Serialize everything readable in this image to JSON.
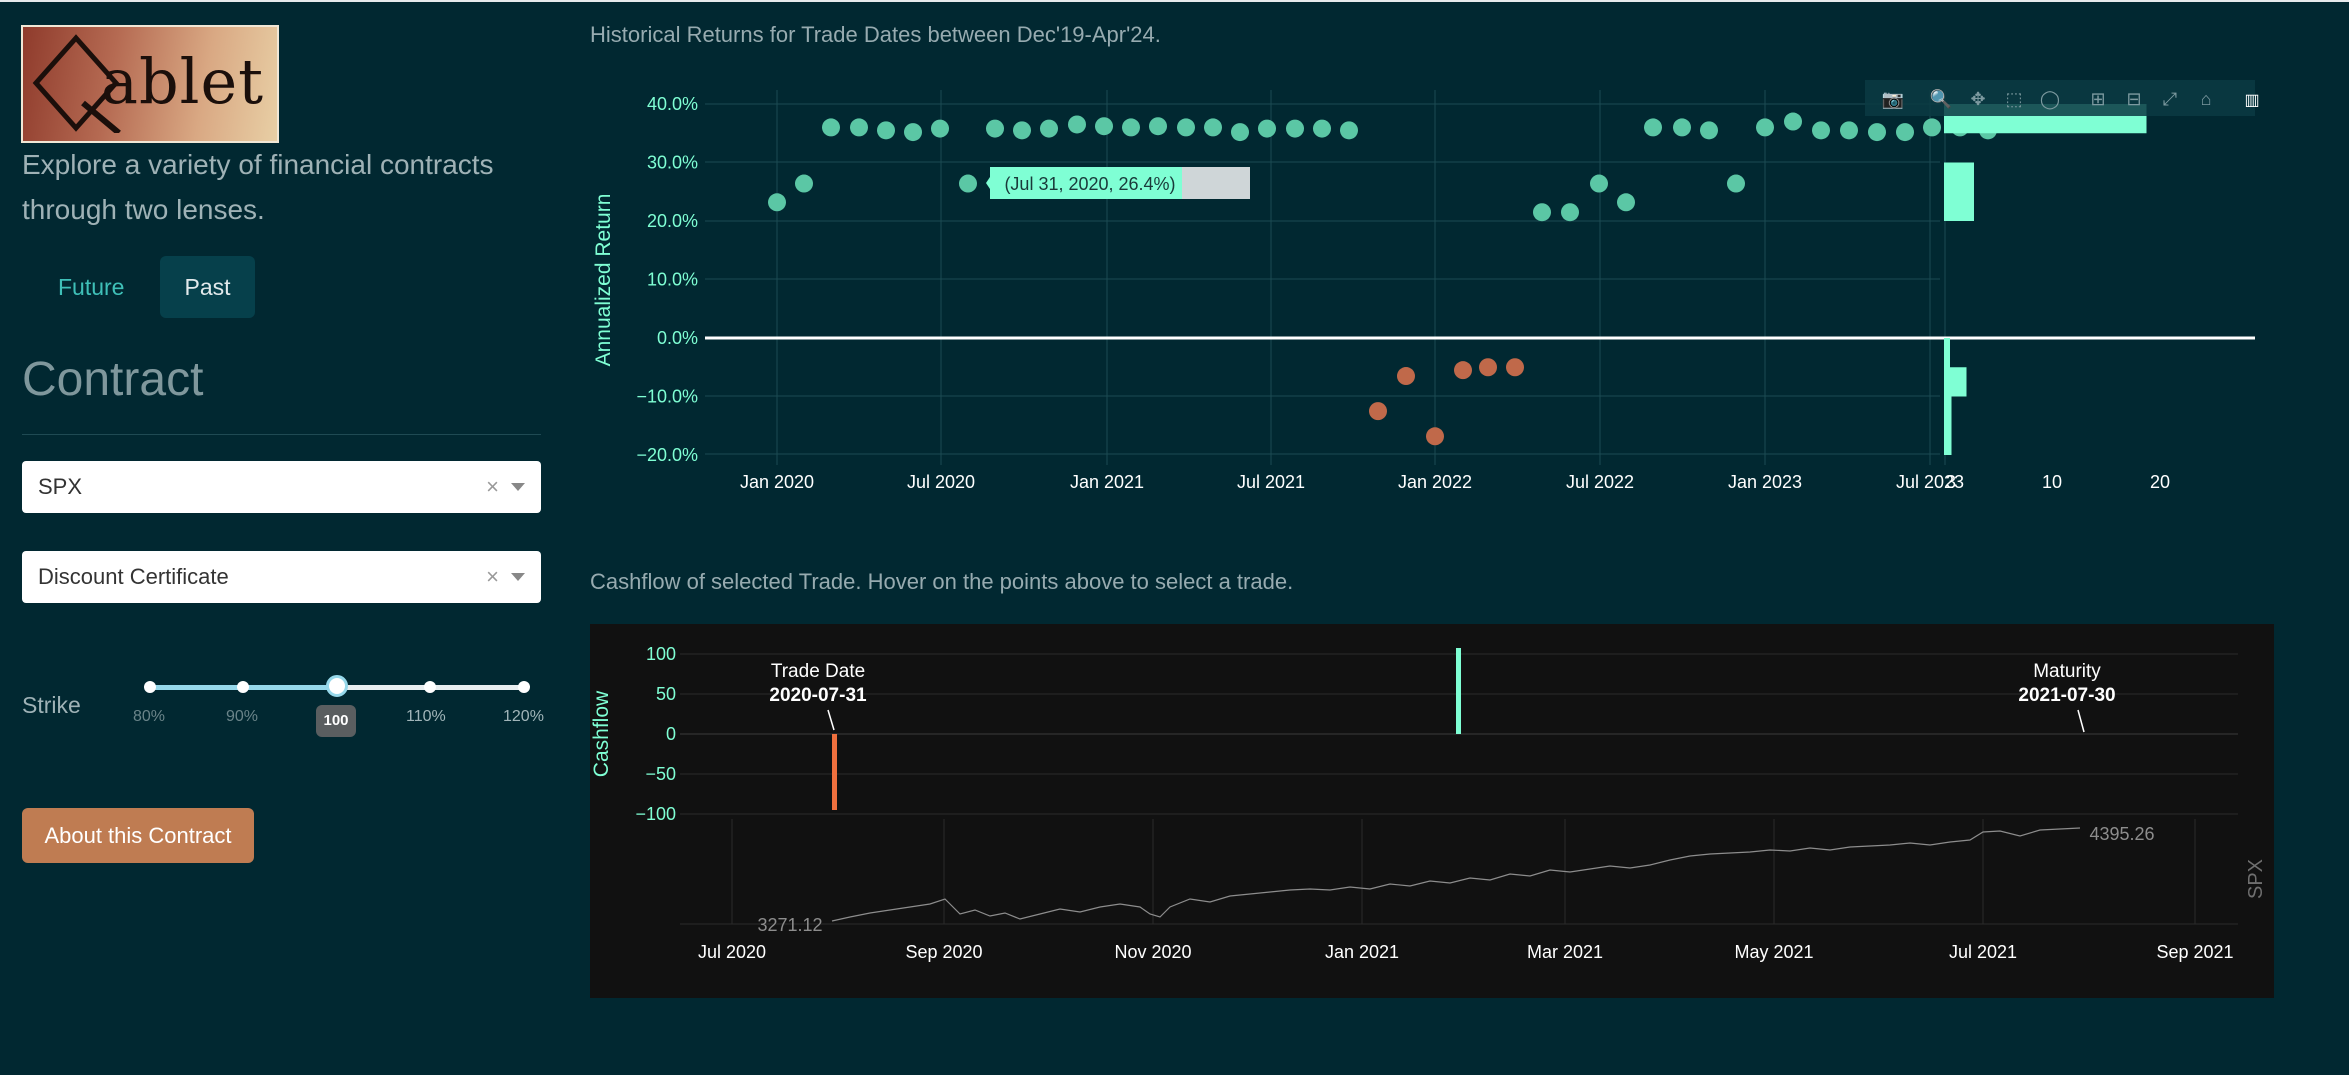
{
  "logo": {
    "text": "ablet"
  },
  "tagline": "Explore a variety of financial contracts through two lenses.",
  "tabs": [
    {
      "label": "Future",
      "active": false
    },
    {
      "label": "Past",
      "active": true
    }
  ],
  "section_title": "Contract",
  "underlying_select": {
    "value": "SPX",
    "clear": "×"
  },
  "contract_select": {
    "value": "Discount Certificate",
    "clear": "×"
  },
  "strike": {
    "label": "Strike",
    "marks": [
      "80%",
      "90%",
      "100",
      "110%",
      "120%"
    ],
    "value": "100",
    "value_fraction": 0.5
  },
  "about_button": "About this Contract",
  "returns_chart": {
    "title": "Historical Returns for Trade Dates between Dec'19-Apr'24.",
    "tooltip": "(Jul 31, 2020, 26.4%)",
    "colors": {
      "positive": "#5bc7a5",
      "negative": "#c0694a",
      "hist": "#7fffd4",
      "bg": "#012831"
    }
  },
  "cashflow_chart": {
    "title": "Cashflow of selected Trade. Hover on the points above to select a trade.",
    "trade_date_label": "Trade Date",
    "trade_date": "2020-07-31",
    "maturity_label": "Maturity",
    "maturity_date": "2021-07-30",
    "start_price": "3271.12",
    "end_price": "4395.26",
    "spx_label": "SPX",
    "colors": {
      "bg": "#111111",
      "negative_bar": "#f0703e",
      "positive_bar": "#7fffd4"
    }
  },
  "chart_data": [
    {
      "type": "scatter",
      "title": "Historical Returns for Trade Dates between Dec'19-Apr'24.",
      "ylabel": "Annualized Return",
      "xlabel": "",
      "x_ticks": [
        "Jan 2020",
        "Jul 2020",
        "Jan 2021",
        "Jul 2021",
        "Jan 2022",
        "Jul 2022",
        "Jan 2023",
        "Jul 2023"
      ],
      "y_ticks": [
        "40.0%",
        "30.0%",
        "20.0%",
        "10.0%",
        "0.0%",
        "−10.0%",
        "−20.0%"
      ],
      "ylim": [
        -21,
        42
      ],
      "x": [
        0.0,
        0.1,
        0.2,
        0.3,
        0.4,
        0.5,
        0.6,
        0.7,
        0.9,
        1.0,
        1.1,
        1.2,
        1.3,
        1.4,
        1.5,
        1.6,
        1.7,
        1.8,
        1.9,
        2.0,
        2.1,
        2.2,
        2.3,
        2.4,
        2.8,
        2.9,
        3.0,
        3.1,
        3.2,
        3.3,
        3.4,
        3.5,
        3.6,
        3.7,
        3.8,
        3.9,
        4.0,
        4.1,
        4.2,
        4.3,
        4.4,
        4.5,
        4.6,
        4.7,
        4.8
      ],
      "values": [
        23.2,
        26.4,
        36,
        36,
        35.5,
        35.2,
        35.8,
        26.4,
        35.8,
        35.5,
        35.8,
        36.5,
        36.2,
        36,
        36.2,
        36,
        36,
        35.2,
        35.8,
        35.8,
        35.8,
        35.5,
        -12.5,
        -6.5,
        -16.8,
        -5.5,
        -5,
        -5,
        21.5,
        21.5,
        26.4,
        23.2,
        36,
        36,
        35.5,
        26.4,
        36,
        37,
        35.5,
        35.5,
        35.2,
        35.2,
        36,
        36,
        35.5
      ],
      "histogram": {
        "x_ticks": [
          "3",
          "10",
          "20"
        ],
        "bins": [
          {
            "range": [
              35,
              40
            ],
            "count": 27
          },
          {
            "range": [
              20,
              30
            ],
            "count": 4
          },
          {
            "range": [
              -10,
              0
            ],
            "count": 0.5
          },
          {
            "range": [
              -10,
              -5
            ],
            "count": 3
          },
          {
            "range": [
              -20,
              -10
            ],
            "count": 1
          }
        ]
      }
    },
    {
      "type": "bar",
      "title": "Cashflow of selected Trade. Hover on the points above to select a trade.",
      "ylabel": "Cashflow",
      "y_ticks": [
        "100",
        "50",
        "0",
        "−50",
        "−100"
      ],
      "ylim": [
        -100,
        100
      ],
      "x_ticks": [
        "Jul 2020",
        "Sep 2020",
        "Nov 2020",
        "Jan 2021",
        "Mar 2021",
        "May 2021",
        "Jul 2021",
        "Sep 2021"
      ],
      "bars": [
        {
          "date": "2020-07-31",
          "value": -95
        },
        {
          "date": "2021-02-12",
          "value": 108
        }
      ]
    },
    {
      "type": "line",
      "title": "",
      "ylabel": "SPX",
      "series": [
        {
          "name": "SPX",
          "start": 3271.12,
          "end": 4395.26
        }
      ]
    }
  ]
}
